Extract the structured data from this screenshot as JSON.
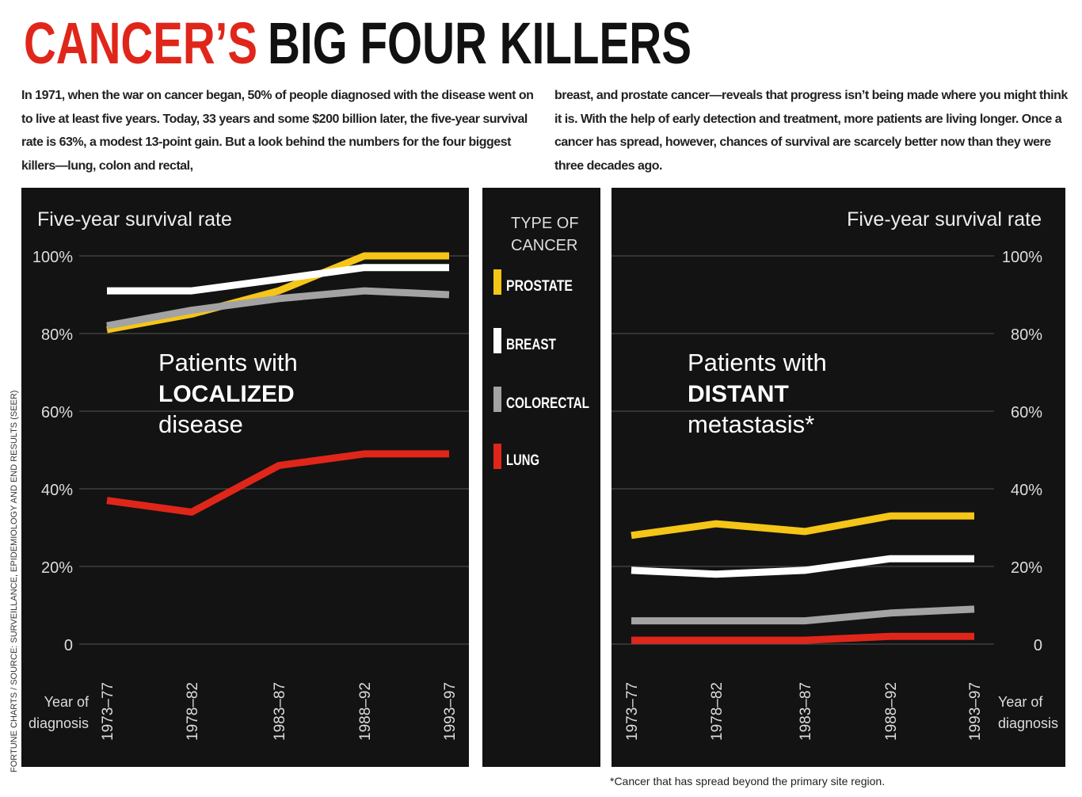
{
  "header": {
    "title_accent": "CANCER’S",
    "title": "BIG FOUR KILLERS",
    "intro": [
      "In 1971, when the war on cancer began, 50% of people diagnosed with the disease went on to live at least five years. Today, 33 years and some $200 billion later, the five-year survival rate is 63%, a modest 13-point gain. But a look behind the numbers for the four biggest killers—lung, colon and rectal,",
      "breast, and prostate cancer—reveals that progress isn’t being made where you might think it is. With the help of early detection and treatment, more patients are living longer. Once a cancer has spread, however, chances of survival are scarcely better now than they were three decades ago."
    ]
  },
  "legend": {
    "title": [
      "TYPE OF",
      "CANCER"
    ]
  },
  "chart_data": [
    {
      "type": "line",
      "ylabel": "Five-year survival rate",
      "xlabel": [
        "Year of",
        "diagnosis"
      ],
      "annotation": [
        "Patients with",
        "LOCALIZED",
        "disease"
      ],
      "categories": [
        "1973–77",
        "1978–82",
        "1983–87",
        "1988–92",
        "1993–97"
      ],
      "ylim": [
        0,
        100
      ],
      "yticks": [
        0,
        {
          "value": 20,
          "label": "20%"
        },
        {
          "value": 40,
          "label": "40%"
        },
        {
          "value": 60,
          "label": "60%"
        },
        {
          "value": 80,
          "label": "80%"
        },
        {
          "value": 100,
          "label": "100%"
        }
      ],
      "grid": true,
      "series": [
        {
          "name": "PROSTATE",
          "color": "#f5c518",
          "values": [
            81,
            85,
            91,
            100,
            100
          ]
        },
        {
          "name": "BREAST",
          "color": "#ffffff",
          "values": [
            91,
            91,
            94,
            97,
            97
          ]
        },
        {
          "name": "COLORECTAL",
          "color": "#a3a3a3",
          "values": [
            82,
            86,
            89,
            91,
            90
          ]
        },
        {
          "name": "LUNG",
          "color": "#e0261a",
          "values": [
            37,
            34,
            46,
            49,
            49
          ]
        }
      ]
    },
    {
      "type": "line",
      "ylabel": "Five-year survival rate",
      "xlabel": [
        "Year of",
        "diagnosis"
      ],
      "annotation": [
        "Patients with",
        "DISTANT",
        "metastasis*"
      ],
      "categories": [
        "1973–77",
        "1978–82",
        "1983–87",
        "1988–92",
        "1993–97"
      ],
      "ylim": [
        0,
        100
      ],
      "yticks": [
        0,
        {
          "value": 20,
          "label": "20%"
        },
        {
          "value": 40,
          "label": "40%"
        },
        {
          "value": 60,
          "label": "60%"
        },
        {
          "value": 80,
          "label": "80%"
        },
        {
          "value": 100,
          "label": "100%"
        }
      ],
      "grid": true,
      "series": [
        {
          "color": "#f5c518",
          "values": [
            28,
            31,
            29,
            33,
            33
          ]
        },
        {
          "color": "#ffffff",
          "values": [
            19,
            18,
            19,
            22,
            22
          ]
        },
        {
          "color": "#a3a3a3",
          "values": [
            6,
            6,
            6,
            8,
            9
          ]
        },
        {
          "color": "#e0261a",
          "values": [
            1,
            1,
            1,
            2,
            2
          ]
        }
      ]
    }
  ],
  "footnote": "*Cancer that has spread beyond the primary site region.",
  "source": "FORTUNE CHARTS / SOURCE: SURVEILLANCE, EPIDEMIOLOGY AND END RESULTS (SEER)"
}
